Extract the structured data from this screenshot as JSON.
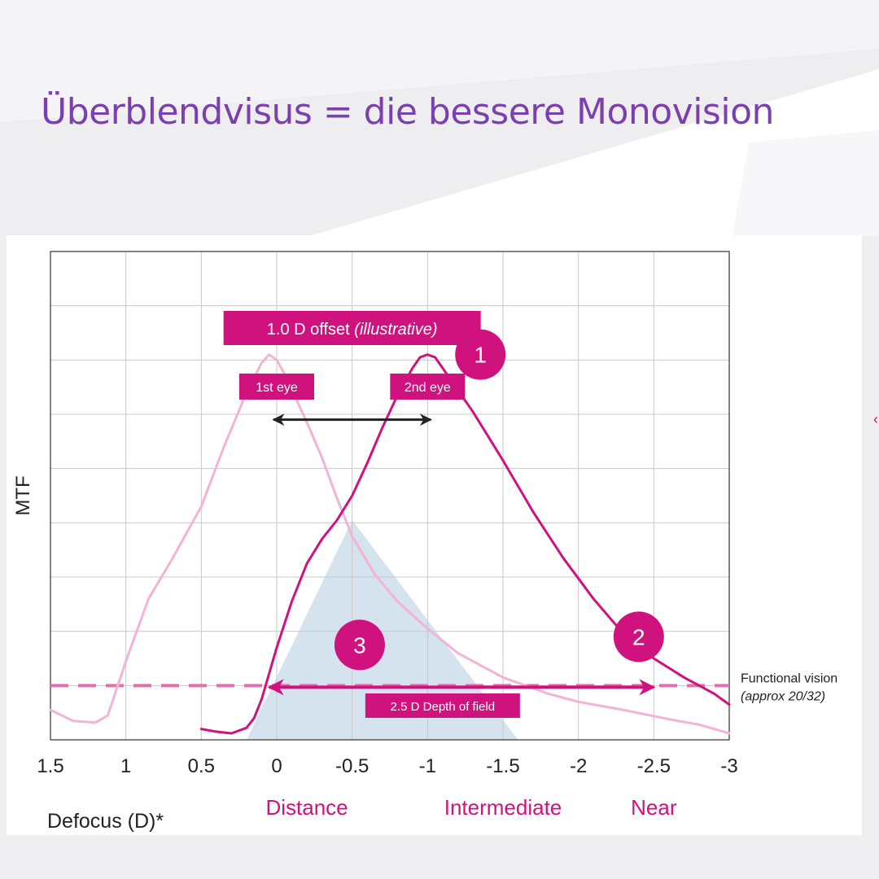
{
  "slide": {
    "title": "Überblendvisus = die bessere Monovision"
  },
  "colors": {
    "title": "#7b3fb0",
    "accent": "#d0127e",
    "first_eye_curve": "#f2b3d4",
    "functional_line": "#e06fae",
    "depth_fill": "#d5e3ef",
    "grid": "#c8c8c8",
    "axis": "#333333"
  },
  "chart_data": {
    "type": "line",
    "xlabel": "Defocus (D)*",
    "ylabel": "MTF",
    "x_reversed": true,
    "xlim": [
      1.5,
      -3
    ],
    "ylim": [
      0,
      9
    ],
    "x_ticks": [
      1.5,
      1,
      0.5,
      0,
      -0.5,
      -1,
      -1.5,
      -2,
      -2.5,
      -3
    ],
    "x_tick_labels": [
      "1.5",
      "1",
      "0.5",
      "0",
      "-0.5",
      "-1",
      "-1.5",
      "-2",
      "-2.5",
      "-3"
    ],
    "y_tick_labels": [],
    "grid": true,
    "series": [
      {
        "label": "1st eye",
        "x": [
          1.5,
          1.35,
          1.2,
          1.12,
          1.0,
          0.85,
          0.7,
          0.5,
          0.35,
          0.2,
          0.1,
          0.05,
          0.0,
          -0.05,
          -0.1,
          -0.2,
          -0.3,
          -0.4,
          -0.5,
          -0.65,
          -0.8,
          -1.0,
          -1.2,
          -1.5,
          -1.8,
          -2.0,
          -2.3,
          -2.6,
          -2.8,
          -3.0
        ],
        "y": [
          0.55,
          0.35,
          0.32,
          0.45,
          1.45,
          2.6,
          3.3,
          4.3,
          5.4,
          6.4,
          6.95,
          7.1,
          7.0,
          6.75,
          6.45,
          5.85,
          5.2,
          4.45,
          3.75,
          3.05,
          2.55,
          2.05,
          1.6,
          1.15,
          0.85,
          0.7,
          0.55,
          0.38,
          0.28,
          0.12
        ]
      },
      {
        "label": "2nd eye",
        "x": [
          0.5,
          0.4,
          0.3,
          0.2,
          0.15,
          0.1,
          0.0,
          -0.1,
          -0.2,
          -0.3,
          -0.4,
          -0.5,
          -0.6,
          -0.7,
          -0.8,
          -0.9,
          -0.95,
          -1.0,
          -1.05,
          -1.1,
          -1.2,
          -1.3,
          -1.4,
          -1.5,
          -1.7,
          -1.9,
          -2.1,
          -2.3,
          -2.5,
          -2.7,
          -2.9,
          -3.0
        ],
        "y": [
          0.2,
          0.15,
          0.12,
          0.22,
          0.4,
          0.75,
          1.7,
          2.55,
          3.25,
          3.7,
          4.05,
          4.5,
          5.1,
          5.75,
          6.35,
          6.85,
          7.05,
          7.1,
          7.05,
          6.85,
          6.45,
          6.05,
          5.6,
          5.15,
          4.2,
          3.35,
          2.6,
          1.95,
          1.5,
          1.15,
          0.85,
          0.65
        ]
      }
    ],
    "reference_line": {
      "y": 1.0,
      "label": "Functional vision",
      "sublabel": "(approx 20/32)"
    },
    "shaded_region": {
      "x": [
        0.2,
        -0.5,
        -1.6
      ],
      "y": [
        0,
        4.05,
        0
      ]
    },
    "offset_arrow": {
      "x_start": 0.0,
      "x_end": -1.0,
      "y": 5.9
    },
    "depth_arrow": {
      "x_start": 0.05,
      "x_end": -2.5,
      "y": 1.0
    },
    "annotations": {
      "offset_box": {
        "text_main": "1.0 D offset ",
        "text_italic": "(illustrative)"
      },
      "first_eye_box": "1st eye",
      "second_eye_box": "2nd eye",
      "depth_box": "2.5 D Depth of field",
      "markers": [
        {
          "label": "1",
          "x": -1.35,
          "y": 7.1
        },
        {
          "label": "2",
          "x": -2.4,
          "y": 1.9
        },
        {
          "label": "3",
          "x": -0.55,
          "y": 1.75
        }
      ]
    },
    "zone_labels": [
      {
        "text": "Distance",
        "x": -0.2
      },
      {
        "text": "Intermediate",
        "x": -1.5
      },
      {
        "text": "Near",
        "x": -2.5
      }
    ]
  }
}
